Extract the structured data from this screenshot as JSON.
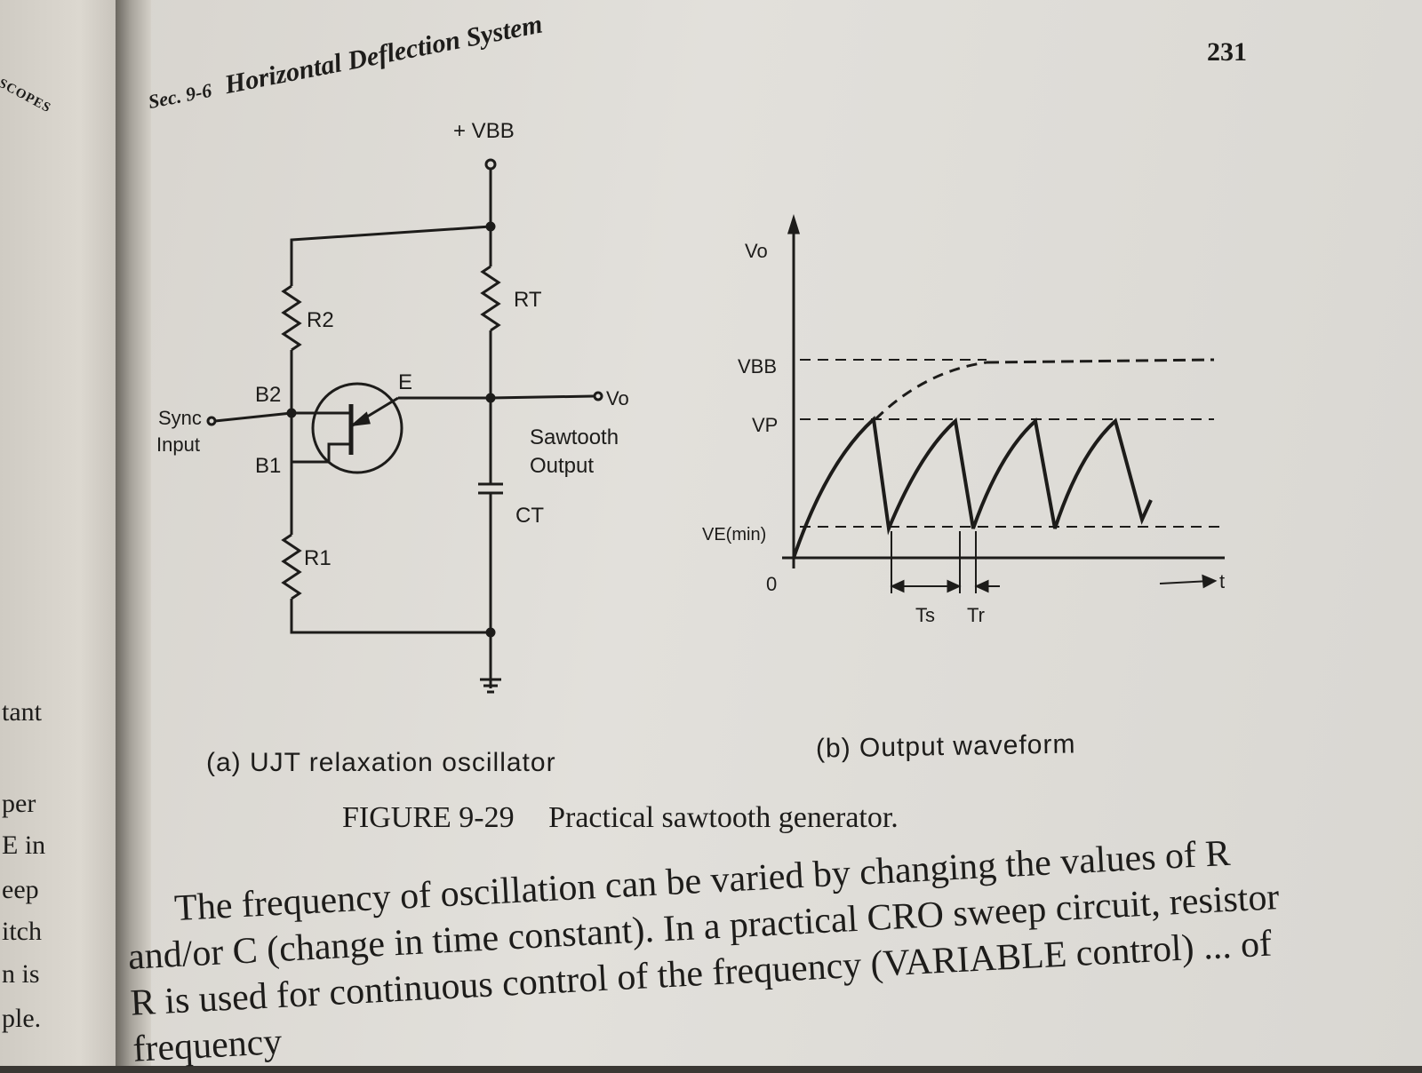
{
  "left_page": {
    "running_head": "OSCOPES",
    "fragments": [
      "tant",
      "per",
      "E in",
      "eep",
      "itch",
      "n is",
      "ple."
    ]
  },
  "header": {
    "section": "Sec. 9-6",
    "title": "Horizontal Deflection System",
    "page_number": "231"
  },
  "circuit": {
    "vbb": "+ VBB",
    "rt": "RT",
    "r2": "R2",
    "r1": "R1",
    "ct": "CT",
    "b2": "B2",
    "b1": "B1",
    "e": "E",
    "sync": "Sync",
    "input": "Input",
    "vo": "Vo",
    "output_line1": "Sawtooth",
    "output_line2": "Output",
    "caption": "(a) UJT relaxation oscillator"
  },
  "waveform": {
    "vo_axis": "Vo",
    "vbb": "VBB",
    "vp": "VP",
    "vemin": "VE(min)",
    "zero": "0",
    "t_axis": "t",
    "ts": "Ts",
    "tr": "Tr",
    "caption": "(b) Output waveform"
  },
  "figure": {
    "number": "FIGURE 9-29",
    "title": "Practical sawtooth generator."
  },
  "body": {
    "paragraph": "The frequency of oscillation can be varied by changing the values of R and/or C (change in time constant). In a practical CRO sweep circuit, resistor R is used for continuous control of the frequency (VARIABLE control) ... of frequency"
  }
}
